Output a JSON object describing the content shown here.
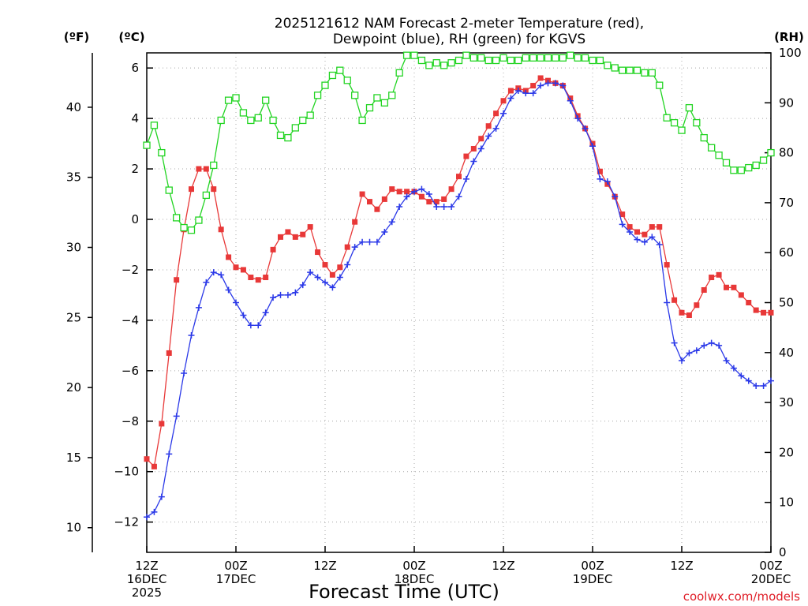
{
  "chart_data": {
    "type": "line",
    "title_lines": [
      "2025121612 NAM Forecast 2-meter Temperature (red),",
      "Dewpoint (blue), RH (green) for KGVS"
    ],
    "xlabel": "Forecast Time (UTC)",
    "credit": "coolwx.com/models",
    "units": {
      "f": "(ºF)",
      "c": "(ºC)",
      "rh": "(RH)"
    },
    "x_range_hours": [
      0,
      84
    ],
    "x_ticks": [
      {
        "hour": 0,
        "lines": [
          "12Z",
          "16DEC",
          "2025"
        ]
      },
      {
        "hour": 12,
        "lines": [
          "00Z",
          "17DEC"
        ]
      },
      {
        "hour": 24,
        "lines": [
          "12Z"
        ]
      },
      {
        "hour": 36,
        "lines": [
          "00Z",
          "18DEC"
        ]
      },
      {
        "hour": 48,
        "lines": [
          "12Z"
        ]
      },
      {
        "hour": 60,
        "lines": [
          "00Z",
          "19DEC"
        ]
      },
      {
        "hour": 72,
        "lines": [
          "12Z"
        ]
      },
      {
        "hour": 84,
        "lines": [
          "00Z",
          "20DEC"
        ]
      }
    ],
    "c_axis": {
      "range": [
        -13.2,
        6.6
      ],
      "ticks": [
        -12,
        -10,
        -8,
        -6,
        -4,
        -2,
        0,
        2,
        4,
        6
      ]
    },
    "f_axis": {
      "ticks": [
        10,
        15,
        20,
        25,
        30,
        35,
        40
      ]
    },
    "rh_axis": {
      "range": [
        0,
        100
      ],
      "ticks": [
        0,
        10,
        20,
        30,
        40,
        50,
        60,
        70,
        80,
        90,
        100
      ]
    },
    "series": [
      {
        "name": "Temperature",
        "units": "C",
        "color": "#e83838",
        "marker": "filled-square",
        "values": [
          -9.5,
          -9.8,
          -8.1,
          -5.3,
          -2.4,
          -0.4,
          1.2,
          2.0,
          2.0,
          1.2,
          -0.4,
          -1.5,
          -1.9,
          -2.0,
          -2.3,
          -2.4,
          -2.3,
          -1.2,
          -0.7,
          -0.5,
          -0.7,
          -0.6,
          -0.3,
          -1.3,
          -1.8,
          -2.2,
          -1.9,
          -1.1,
          -0.1,
          1.0,
          0.7,
          0.4,
          0.8,
          1.2,
          1.1,
          1.1,
          1.1,
          0.9,
          0.7,
          0.7,
          0.8,
          1.2,
          1.7,
          2.5,
          2.8,
          3.2,
          3.7,
          4.2,
          4.7,
          5.1,
          5.2,
          5.1,
          5.3,
          5.6,
          5.5,
          5.4,
          5.3,
          4.8,
          4.1,
          3.6,
          3.0,
          1.9,
          1.4,
          0.9,
          0.2,
          -0.3,
          -0.5,
          -0.6,
          -0.3,
          -0.3,
          -1.8,
          -3.2,
          -3.7,
          -3.8,
          -3.4,
          -2.8,
          -2.3,
          -2.2,
          -2.7,
          -2.7,
          -3.0,
          -3.3,
          -3.6,
          -3.7,
          -3.7
        ]
      },
      {
        "name": "Dewpoint",
        "units": "C",
        "color": "#2a38e8",
        "marker": "plus",
        "values": [
          -11.8,
          -11.6,
          -11.0,
          -9.3,
          -7.8,
          -6.1,
          -4.6,
          -3.5,
          -2.5,
          -2.1,
          -2.2,
          -2.8,
          -3.3,
          -3.8,
          -4.2,
          -4.2,
          -3.7,
          -3.1,
          -3.0,
          -3.0,
          -2.9,
          -2.6,
          -2.1,
          -2.3,
          -2.5,
          -2.7,
          -2.3,
          -1.8,
          -1.1,
          -0.9,
          -0.9,
          -0.9,
          -0.5,
          -0.1,
          0.5,
          0.9,
          1.1,
          1.2,
          1.0,
          0.5,
          0.5,
          0.5,
          0.9,
          1.6,
          2.3,
          2.8,
          3.3,
          3.6,
          4.2,
          4.8,
          5.1,
          5.0,
          5.0,
          5.3,
          5.4,
          5.4,
          5.3,
          4.7,
          4.0,
          3.6,
          2.9,
          1.6,
          1.5,
          0.9,
          -0.2,
          -0.5,
          -0.8,
          -0.9,
          -0.7,
          -1.0,
          -3.3,
          -4.9,
          -5.6,
          -5.3,
          -5.2,
          -5.0,
          -4.9,
          -5.0,
          -5.6,
          -5.9,
          -6.2,
          -6.4,
          -6.6,
          -6.6,
          -6.4
        ]
      },
      {
        "name": "RH",
        "units": "%",
        "color": "#22d422",
        "marker": "open-square",
        "values": [
          81.5,
          85.5,
          80.0,
          72.5,
          67.0,
          65.0,
          64.5,
          66.5,
          71.5,
          77.5,
          86.5,
          90.5,
          91.0,
          88.0,
          86.5,
          87.0,
          90.5,
          86.5,
          83.5,
          83.0,
          85.0,
          86.5,
          87.5,
          91.5,
          93.5,
          95.5,
          96.5,
          94.5,
          91.5,
          86.5,
          89.0,
          91.0,
          90.0,
          91.5,
          96.0,
          99.5,
          99.5,
          98.5,
          97.5,
          98.0,
          97.5,
          98.0,
          98.5,
          99.5,
          99.0,
          99.0,
          98.5,
          98.5,
          99.0,
          98.5,
          98.5,
          99.0,
          99.0,
          99.0,
          99.0,
          99.0,
          99.0,
          99.5,
          99.0,
          99.0,
          98.5,
          98.5,
          97.5,
          97.0,
          96.5,
          96.5,
          96.5,
          96.0,
          96.0,
          93.5,
          87.0,
          86.0,
          84.5,
          89.0,
          86.0,
          83.0,
          81.0,
          79.5,
          78.0,
          76.5,
          76.5,
          77.0,
          77.5,
          78.5,
          80.0
        ]
      }
    ]
  }
}
